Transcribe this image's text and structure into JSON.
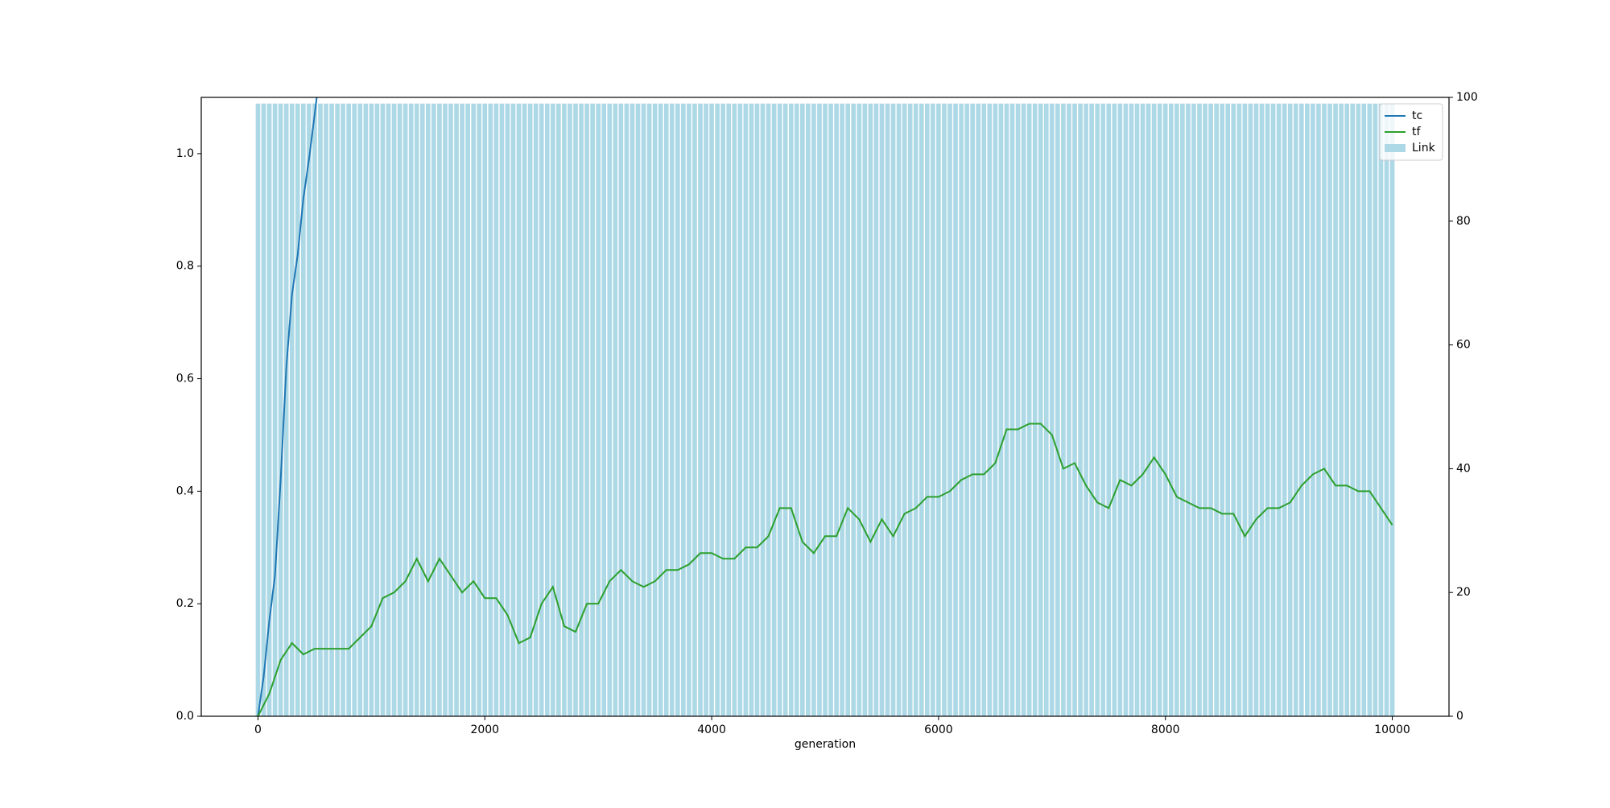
{
  "chart_data": {
    "type": "combo",
    "xlabel": "generation",
    "xlim": [
      -500,
      10500
    ],
    "xticks": [
      0,
      2000,
      4000,
      6000,
      8000,
      10000
    ],
    "ylim": [
      0,
      1.1
    ],
    "yticks": [
      {
        "value": 0,
        "label": "0.0"
      },
      0.2,
      0.4,
      0.6,
      0.8,
      {
        "value": 1,
        "label": "1.0"
      }
    ],
    "y2lim": [
      0,
      100
    ],
    "y2ticks": [
      0,
      20,
      40,
      60,
      80,
      100
    ],
    "legend": "upper right",
    "series": [
      {
        "name": "tc",
        "type": "line",
        "color": "#1f77b4",
        "x": [
          0,
          50,
          100,
          150,
          200,
          250,
          300,
          350,
          400,
          450,
          500,
          530
        ],
        "values": [
          0,
          0.07,
          0.17,
          0.25,
          0.42,
          0.62,
          0.75,
          0.82,
          0.92,
          0.99,
          1.07,
          1.12
        ]
      },
      {
        "name": "tf",
        "type": "line",
        "color": "#2ca02c",
        "x": [
          0,
          100,
          200,
          300,
          400,
          500,
          600,
          700,
          800,
          900,
          1000,
          1100,
          1200,
          1300,
          1400,
          1500,
          1600,
          1700,
          1800,
          1900,
          2000,
          2100,
          2200,
          2300,
          2400,
          2500,
          2600,
          2700,
          2800,
          2900,
          3000,
          3100,
          3200,
          3300,
          3400,
          3500,
          3600,
          3700,
          3800,
          3900,
          4000,
          4100,
          4200,
          4300,
          4400,
          4500,
          4600,
          4700,
          4800,
          4900,
          5000,
          5100,
          5200,
          5300,
          5400,
          5500,
          5600,
          5700,
          5800,
          5900,
          6000,
          6100,
          6200,
          6300,
          6400,
          6500,
          6600,
          6700,
          6800,
          6900,
          7000,
          7100,
          7200,
          7300,
          7400,
          7500,
          7600,
          7700,
          7800,
          7900,
          8000,
          8100,
          8200,
          8300,
          8400,
          8500,
          8600,
          8700,
          8800,
          8900,
          9000,
          9100,
          9200,
          9300,
          9400,
          9500,
          9600,
          9700,
          9800,
          9900,
          10000
        ],
        "values": [
          0,
          0.04,
          0.1,
          0.13,
          0.11,
          0.12,
          0.12,
          0.12,
          0.12,
          0.14,
          0.16,
          0.21,
          0.22,
          0.24,
          0.28,
          0.24,
          0.28,
          0.25,
          0.22,
          0.24,
          0.21,
          0.21,
          0.18,
          0.13,
          0.14,
          0.2,
          0.23,
          0.16,
          0.15,
          0.2,
          0.2,
          0.24,
          0.26,
          0.24,
          0.23,
          0.24,
          0.26,
          0.26,
          0.27,
          0.29,
          0.29,
          0.28,
          0.28,
          0.3,
          0.3,
          0.32,
          0.37,
          0.37,
          0.31,
          0.29,
          0.32,
          0.32,
          0.37,
          0.35,
          0.31,
          0.35,
          0.32,
          0.36,
          0.37,
          0.39,
          0.39,
          0.4,
          0.42,
          0.43,
          0.43,
          0.45,
          0.51,
          0.51,
          0.52,
          0.52,
          0.5,
          0.44,
          0.45,
          0.41,
          0.38,
          0.37,
          0.42,
          0.41,
          0.43,
          0.46,
          0.43,
          0.39,
          0.38,
          0.37,
          0.37,
          0.36,
          0.36,
          0.32,
          0.35,
          0.37,
          0.37,
          0.38,
          0.41,
          0.43,
          0.44,
          0.41,
          0.41,
          0.4,
          0.4,
          0.37,
          0.34
        ]
      },
      {
        "name": "Link",
        "type": "bar",
        "axis": "y2",
        "color": "#add8e6",
        "x": [
          0,
          50,
          100,
          150,
          200,
          250,
          300,
          350,
          400,
          450,
          500,
          550,
          600,
          650,
          700,
          750,
          800,
          850,
          900,
          950,
          1000,
          1050,
          1100,
          1150,
          1200,
          1250,
          1300,
          1350,
          1400,
          1450,
          1500,
          1550,
          1600,
          1650,
          1700,
          1750,
          1800,
          1850,
          1900,
          1950,
          2000,
          2050,
          2100,
          2150,
          2200,
          2250,
          2300,
          2350,
          2400,
          2450,
          2500,
          2550,
          2600,
          2650,
          2700,
          2750,
          2800,
          2850,
          2900,
          2950,
          3000,
          3050,
          3100,
          3150,
          3200,
          3250,
          3300,
          3350,
          3400,
          3450,
          3500,
          3550,
          3600,
          3650,
          3700,
          3750,
          3800,
          3850,
          3900,
          3950,
          4000,
          4050,
          4100,
          4150,
          4200,
          4250,
          4300,
          4350,
          4400,
          4450,
          4500,
          4550,
          4600,
          4650,
          4700,
          4750,
          4800,
          4850,
          4900,
          4950,
          5000,
          5050,
          5100,
          5150,
          5200,
          5250,
          5300,
          5350,
          5400,
          5450,
          5500,
          5550,
          5600,
          5650,
          5700,
          5750,
          5800,
          5850,
          5900,
          5950,
          6000,
          6050,
          6100,
          6150,
          6200,
          6250,
          6300,
          6350,
          6400,
          6450,
          6500,
          6550,
          6600,
          6650,
          6700,
          6750,
          6800,
          6850,
          6900,
          6950,
          7000,
          7050,
          7100,
          7150,
          7200,
          7250,
          7300,
          7350,
          7400,
          7450,
          7500,
          7550,
          7600,
          7650,
          7700,
          7750,
          7800,
          7850,
          7900,
          7950,
          8000,
          8050,
          8100,
          8150,
          8200,
          8250,
          8300,
          8350,
          8400,
          8450,
          8500,
          8550,
          8600,
          8650,
          8700,
          8750,
          8800,
          8850,
          8900,
          8950,
          9000,
          9050,
          9100,
          9150,
          9200,
          9250,
          9300,
          9350,
          9400,
          9450,
          9500,
          9550,
          9600,
          9650,
          9700,
          9750,
          9800,
          9850,
          9900,
          9950,
          10000
        ],
        "values": [
          99,
          99,
          99,
          99,
          99,
          99,
          99,
          99,
          99,
          99,
          99,
          99,
          99,
          99,
          99,
          99,
          99,
          99,
          99,
          99,
          99,
          99,
          99,
          99,
          99,
          99,
          99,
          99,
          99,
          99,
          99,
          99,
          99,
          99,
          99,
          99,
          99,
          99,
          99,
          99,
          99,
          99,
          99,
          99,
          99,
          99,
          99,
          99,
          99,
          99,
          99,
          99,
          99,
          99,
          99,
          99,
          99,
          99,
          99,
          99,
          99,
          99,
          99,
          99,
          99,
          99,
          99,
          99,
          99,
          99,
          99,
          99,
          99,
          99,
          99,
          99,
          99,
          99,
          99,
          99,
          99,
          99,
          99,
          99,
          99,
          99,
          99,
          99,
          99,
          99,
          99,
          99,
          99,
          99,
          99,
          99,
          99,
          99,
          99,
          99,
          99,
          99,
          99,
          99,
          99,
          99,
          99,
          99,
          99,
          99,
          99,
          99,
          99,
          99,
          99,
          99,
          99,
          99,
          99,
          99,
          99,
          99,
          99,
          99,
          99,
          99,
          99,
          99,
          99,
          99,
          99,
          99,
          99,
          99,
          99,
          99,
          99,
          99,
          99,
          99,
          99,
          99,
          99,
          99,
          99,
          99,
          99,
          99,
          99,
          99,
          99,
          99,
          99,
          99,
          99,
          99,
          99,
          99,
          99,
          99,
          99,
          99,
          99,
          99,
          99,
          99,
          99,
          99,
          99,
          99,
          99,
          99,
          99,
          99,
          99,
          99,
          99,
          99,
          99,
          99,
          99,
          99,
          99,
          99,
          99,
          99,
          99,
          99,
          99,
          99,
          99,
          99,
          99,
          99,
          99,
          99,
          99,
          99,
          99,
          99,
          99
        ]
      }
    ]
  }
}
